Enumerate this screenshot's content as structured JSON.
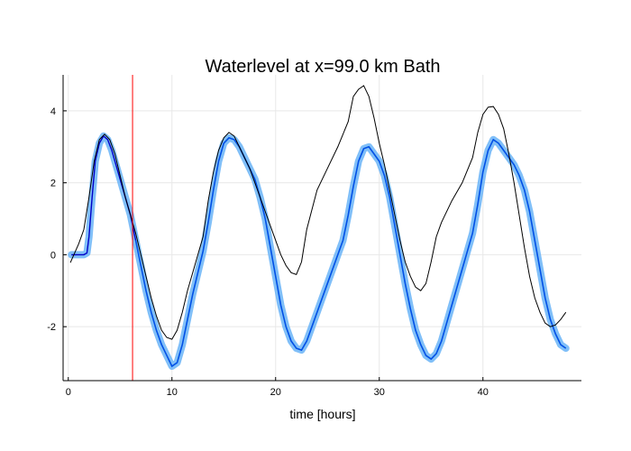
{
  "chart_data": {
    "type": "line",
    "title": "Waterlevel at x=99.0 km Bath",
    "xlabel": "time [hours]",
    "ylabel": "",
    "xlim": [
      -0.5,
      49.5
    ],
    "ylim": [
      -3.5,
      5.0
    ],
    "xticks": [
      0,
      10,
      20,
      30,
      40
    ],
    "yticks": [
      -2,
      0,
      2,
      4
    ],
    "grid": true,
    "legend": "none",
    "vline": {
      "x": 6.2,
      "color": "#ff0000"
    },
    "colors": {
      "observed": "#000000",
      "ensemble_band": "#6ab4f7",
      "ensemble_mean": "#0050e6",
      "early_mean": "#0000c8"
    },
    "series": [
      {
        "role": "observed",
        "x": [
          0.2,
          1.0,
          1.5,
          2.0,
          2.5,
          3.0,
          3.5,
          4.0,
          4.5,
          5.0,
          5.5,
          6.0,
          6.5,
          7.0,
          7.5,
          8.0,
          8.5,
          9.0,
          9.5,
          10.0,
          10.5,
          11.0,
          11.5,
          12.0,
          12.5,
          13.0,
          13.5,
          14.0,
          14.5,
          15.0,
          15.5,
          16.0,
          16.5,
          17.0,
          17.5,
          18.0,
          18.5,
          19.0,
          19.5,
          20.0,
          20.5,
          21.0,
          21.5,
          22.0,
          22.5,
          23.0,
          24.0,
          25.0,
          26.0,
          27.0,
          27.5,
          28.0,
          28.5,
          29.0,
          29.5,
          30.0,
          30.5,
          31.0,
          31.5,
          32.0,
          32.5,
          33.0,
          33.5,
          34.0,
          34.5,
          35.0,
          35.5,
          36.0,
          37.0,
          38.0,
          39.0,
          39.5,
          40.0,
          40.5,
          41.0,
          41.5,
          42.0,
          42.5,
          43.0,
          43.5,
          44.0,
          44.5,
          45.0,
          45.5,
          46.0,
          46.5,
          47.0,
          47.5,
          48.0
        ],
        "y": [
          -0.22,
          0.3,
          0.7,
          1.6,
          2.6,
          3.2,
          3.35,
          3.2,
          2.8,
          2.2,
          1.6,
          1.1,
          0.6,
          0.0,
          -0.6,
          -1.2,
          -1.7,
          -2.1,
          -2.3,
          -2.35,
          -2.1,
          -1.6,
          -1.0,
          -0.5,
          0.0,
          0.5,
          1.5,
          2.3,
          2.9,
          3.25,
          3.4,
          3.3,
          3.0,
          2.7,
          2.4,
          2.0,
          1.6,
          1.2,
          0.8,
          0.4,
          0.0,
          -0.3,
          -0.5,
          -0.55,
          -0.2,
          0.7,
          1.8,
          2.4,
          3.0,
          3.7,
          4.4,
          4.6,
          4.7,
          4.4,
          3.8,
          3.1,
          2.5,
          1.8,
          1.1,
          0.4,
          -0.2,
          -0.6,
          -0.9,
          -1.0,
          -0.8,
          -0.2,
          0.5,
          0.9,
          1.5,
          2.0,
          2.7,
          3.4,
          3.9,
          4.1,
          4.12,
          3.9,
          3.5,
          2.8,
          2.0,
          1.1,
          0.2,
          -0.6,
          -1.2,
          -1.6,
          -1.9,
          -2.0,
          -1.95,
          -1.8,
          -1.6
        ]
      },
      {
        "role": "ensemble_mean",
        "x": [
          0.3,
          1.5,
          1.8,
          2.0,
          2.3,
          2.6,
          3.0,
          3.4,
          3.8,
          4.2,
          4.6,
          5.0,
          5.5,
          6.0,
          6.5,
          7.0,
          7.5,
          8.0,
          8.5,
          9.0,
          9.5,
          10.0,
          10.5,
          11.0,
          11.5,
          12.0,
          12.5,
          13.0,
          13.5,
          14.0,
          14.5,
          15.0,
          15.5,
          16.0,
          16.5,
          17.0,
          17.5,
          18.0,
          18.5,
          19.0,
          19.5,
          20.0,
          20.5,
          21.0,
          21.5,
          22.0,
          22.5,
          23.0,
          23.5,
          24.0,
          24.5,
          25.0,
          25.5,
          26.0,
          26.5,
          27.0,
          27.5,
          28.0,
          28.5,
          29.0,
          29.5,
          30.0,
          30.5,
          31.0,
          31.5,
          32.0,
          32.5,
          33.0,
          33.5,
          34.0,
          34.5,
          35.0,
          35.5,
          36.0,
          36.5,
          37.0,
          37.5,
          38.0,
          38.5,
          39.0,
          39.5,
          40.0,
          40.5,
          41.0,
          41.5,
          42.0,
          42.5,
          43.0,
          43.5,
          44.0,
          44.5,
          45.0,
          45.5,
          46.0,
          46.5,
          47.0,
          47.5,
          48.0
        ],
        "y": [
          0.0,
          0.0,
          0.05,
          0.5,
          1.6,
          2.6,
          3.1,
          3.3,
          3.2,
          2.9,
          2.5,
          2.1,
          1.6,
          1.1,
          0.4,
          -0.3,
          -1.0,
          -1.6,
          -2.1,
          -2.5,
          -2.8,
          -3.1,
          -3.0,
          -2.5,
          -1.8,
          -1.1,
          -0.5,
          0.1,
          0.9,
          1.8,
          2.6,
          3.1,
          3.25,
          3.2,
          3.0,
          2.7,
          2.4,
          2.1,
          1.6,
          1.0,
          0.2,
          -0.6,
          -1.4,
          -2.0,
          -2.4,
          -2.6,
          -2.65,
          -2.4,
          -2.0,
          -1.6,
          -1.2,
          -0.8,
          -0.4,
          0.0,
          0.4,
          1.1,
          1.9,
          2.6,
          2.95,
          3.0,
          2.8,
          2.6,
          2.2,
          1.6,
          0.8,
          0.0,
          -0.8,
          -1.5,
          -2.1,
          -2.5,
          -2.8,
          -2.9,
          -2.75,
          -2.4,
          -1.9,
          -1.4,
          -0.9,
          -0.4,
          0.1,
          0.6,
          1.4,
          2.3,
          2.9,
          3.2,
          3.1,
          2.9,
          2.7,
          2.5,
          2.2,
          1.8,
          1.2,
          0.4,
          -0.4,
          -1.2,
          -1.8,
          -2.2,
          -2.5,
          -2.6
        ]
      }
    ]
  }
}
